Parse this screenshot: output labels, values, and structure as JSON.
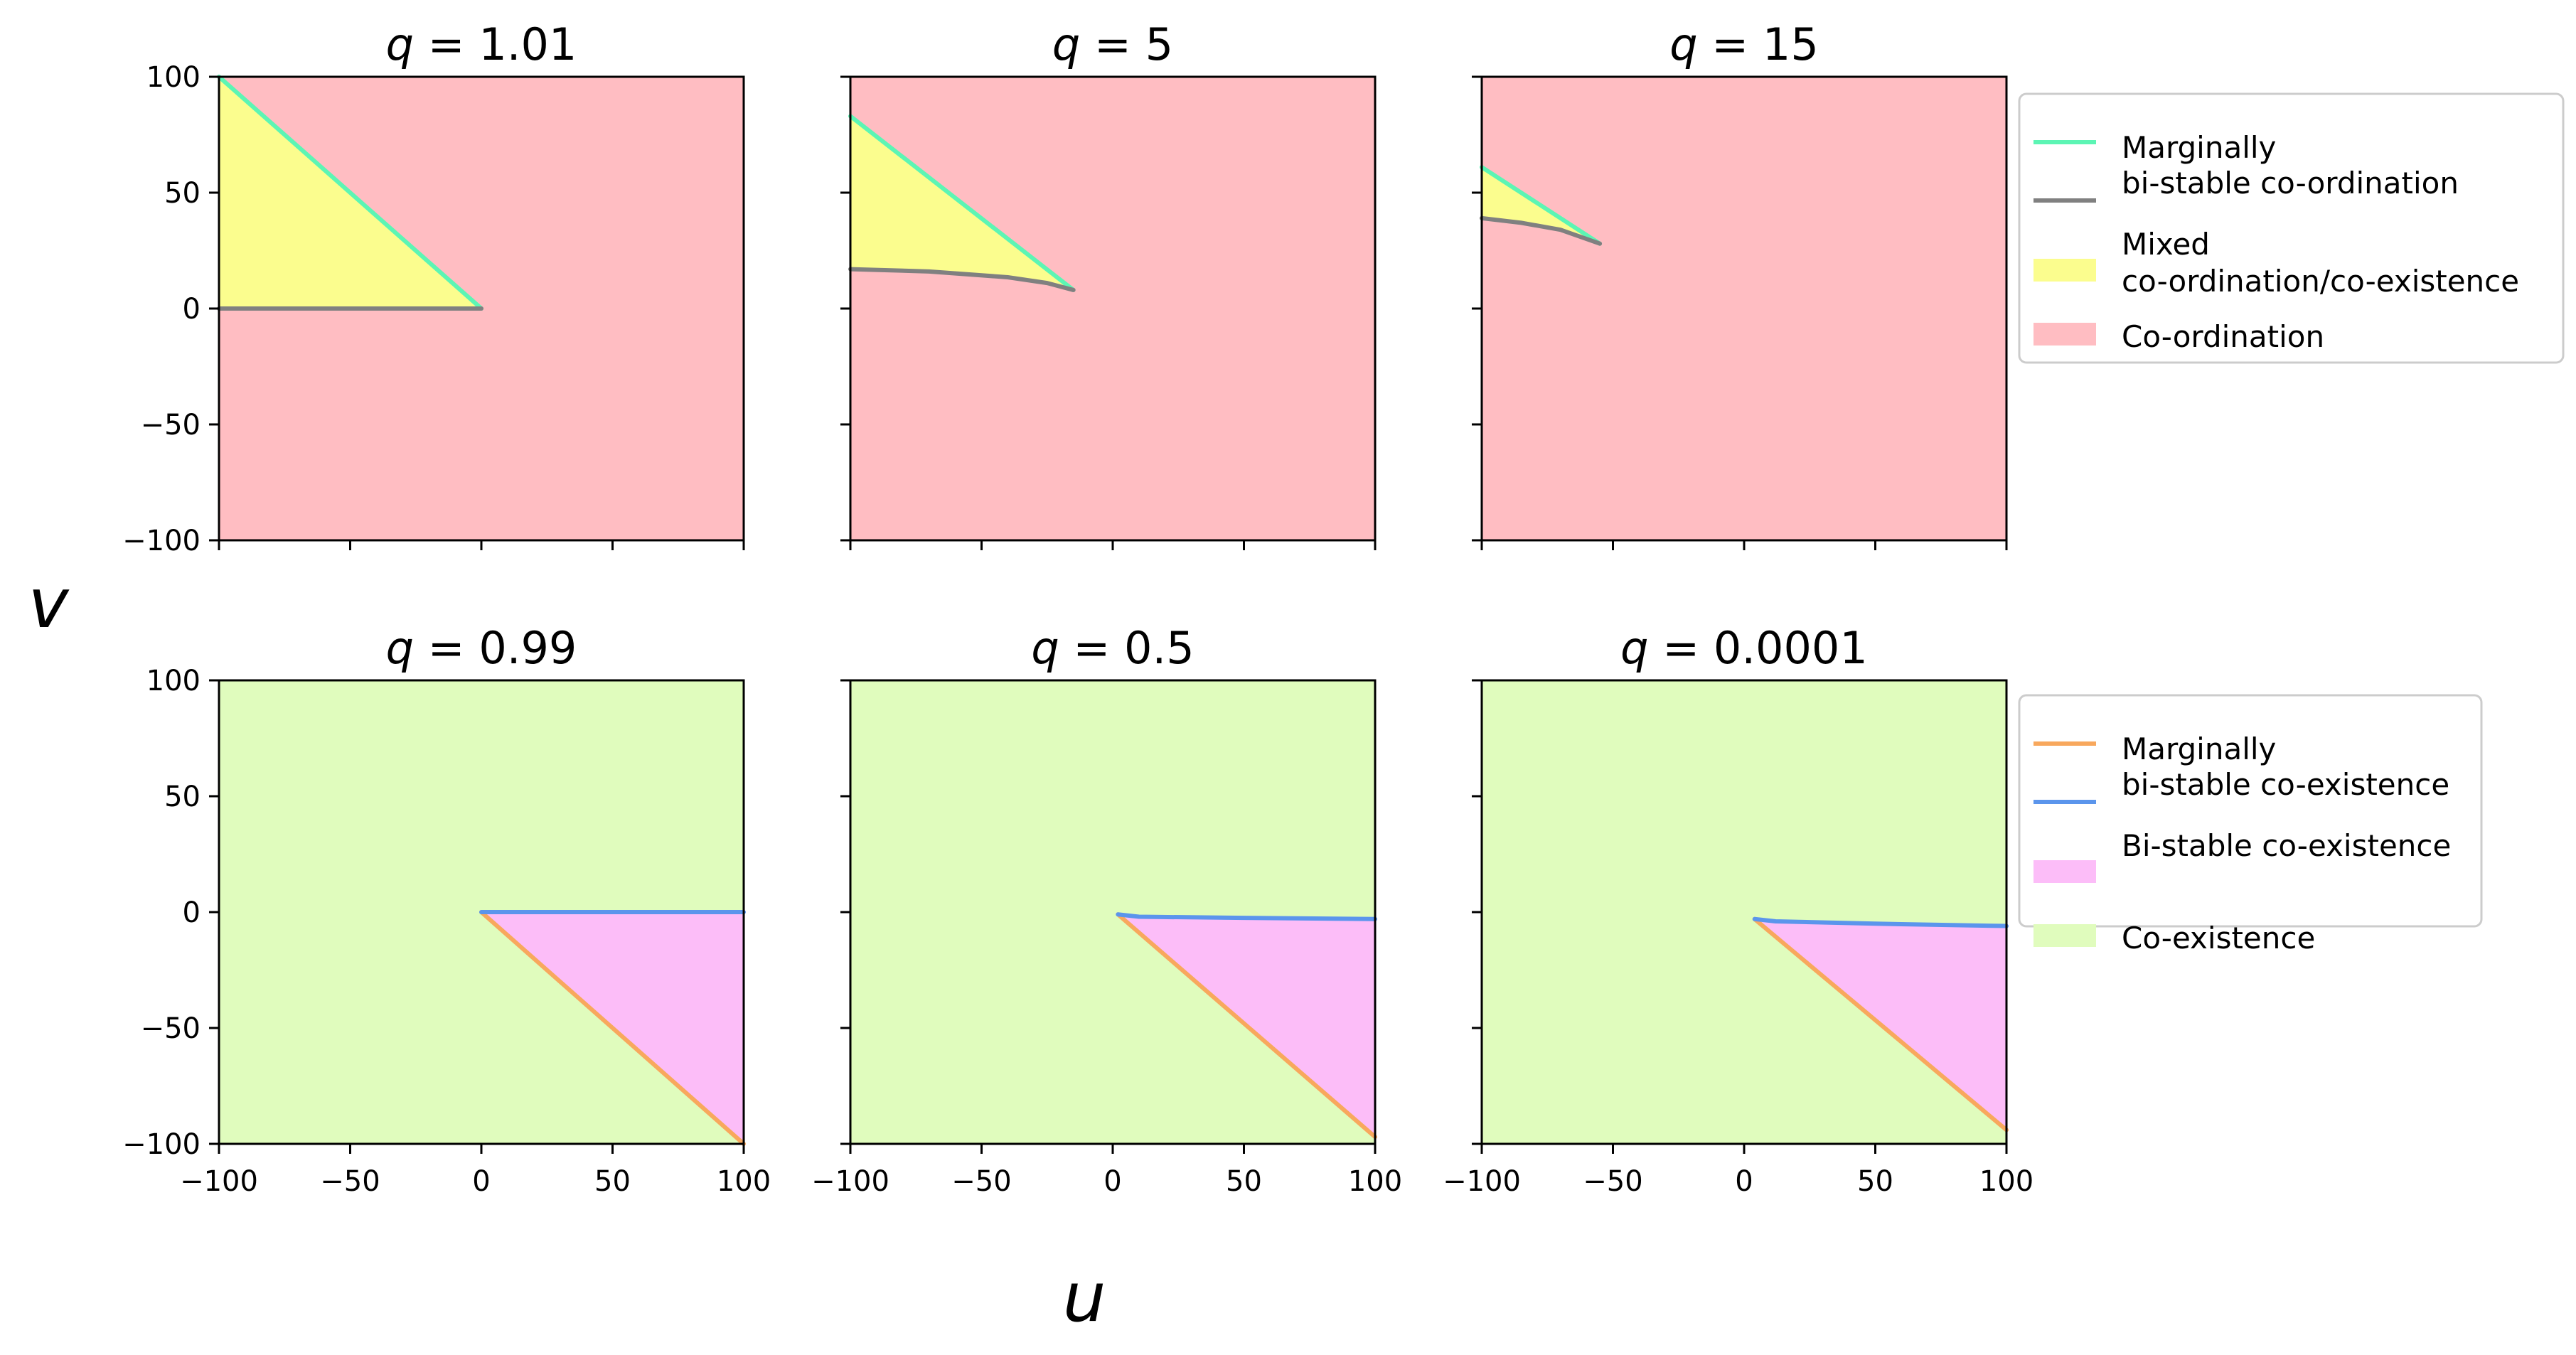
{
  "figure": {
    "xlabel": "u",
    "ylabel": "v"
  },
  "colors": {
    "coordination_fill": "#ffbdc2",
    "mixed_fill": "#fbfd8e",
    "coexistence_fill": "#e0fcbd",
    "bistable_coexistence_fill": "#fcbdf8",
    "marginal_coordination_line": "#5cf5b4",
    "bistable_coordination_line": "#808080",
    "marginal_coexistence_line": "#f8a85d",
    "bistable_coexistence_line": "#5b95ec"
  },
  "legends": {
    "top": [
      {
        "kind": "line",
        "color": "#5cf5b4",
        "label_lines": [
          "Marginally"
        ]
      },
      {
        "kind": "line",
        "color": "#808080",
        "label_lines": [
          "bi-stable co-ordination"
        ]
      },
      {
        "kind": "patch",
        "color": "#fbfd8e",
        "label_lines": [
          "Mixed",
          "co-ordination/co-existence"
        ]
      },
      {
        "kind": "patch",
        "color": "#ffbdc2",
        "label_lines": [
          "Co-ordination"
        ]
      }
    ],
    "bottom": [
      {
        "kind": "line",
        "color": "#f8a85d",
        "label_lines": [
          "Marginally"
        ]
      },
      {
        "kind": "line",
        "color": "#5b95ec",
        "label_lines": [
          "bi-stable co-existence"
        ]
      },
      {
        "kind": "patch",
        "color": "#fcbdf8",
        "label_lines": [
          "Bi-stable co-existence"
        ]
      },
      {
        "kind": "patch",
        "color": "#e0fcbd",
        "label_lines": [
          "Co-existence"
        ]
      }
    ]
  },
  "chart_data": [
    {
      "type": "area",
      "title": "q = 1.01",
      "title_prefix": "q",
      "title_value": "1.01",
      "xlim": [
        -100,
        100
      ],
      "ylim": [
        -100,
        100
      ],
      "xticks": [],
      "yticks": [
        100,
        50,
        0,
        -50,
        -100
      ],
      "background": "#ffbdc2",
      "region": {
        "name": "Mixed co-ordination/co-existence",
        "color": "#fbfd8e",
        "points": [
          [
            -100,
            100
          ],
          [
            0,
            0
          ],
          [
            -100,
            0
          ]
        ]
      },
      "lines": [
        {
          "name": "Marginally",
          "color": "#5cf5b4",
          "points": [
            [
              -100,
              100
            ],
            [
              0,
              0
            ]
          ]
        },
        {
          "name": "bi-stable co-ordination",
          "color": "#808080",
          "points": [
            [
              -100,
              0
            ],
            [
              -50,
              0
            ],
            [
              0,
              0
            ]
          ]
        }
      ]
    },
    {
      "type": "area",
      "title": "q = 5",
      "title_prefix": "q",
      "title_value": "5",
      "xlim": [
        -100,
        100
      ],
      "ylim": [
        -100,
        100
      ],
      "xticks": [],
      "yticks": [],
      "background": "#ffbdc2",
      "region": {
        "name": "Mixed co-ordination/co-existence",
        "color": "#fbfd8e",
        "points": [
          [
            -100,
            83
          ],
          [
            -15,
            8
          ],
          [
            -40,
            13.5
          ],
          [
            -70,
            16
          ],
          [
            -100,
            17
          ]
        ]
      },
      "lines": [
        {
          "name": "Marginally",
          "color": "#5cf5b4",
          "points": [
            [
              -100,
              83
            ],
            [
              -15,
              8
            ]
          ]
        },
        {
          "name": "bi-stable co-ordination",
          "color": "#808080",
          "points": [
            [
              -100,
              17
            ],
            [
              -70,
              16
            ],
            [
              -40,
              13.5
            ],
            [
              -25,
              11
            ],
            [
              -15,
              8
            ]
          ]
        }
      ]
    },
    {
      "type": "area",
      "title": "q = 15",
      "title_prefix": "q",
      "title_value": "15",
      "xlim": [
        -100,
        100
      ],
      "ylim": [
        -100,
        100
      ],
      "xticks": [],
      "yticks": [],
      "background": "#ffbdc2",
      "region": {
        "name": "Mixed co-ordination/co-existence",
        "color": "#fbfd8e",
        "points": [
          [
            -100,
            61
          ],
          [
            -55,
            28
          ],
          [
            -75,
            35
          ],
          [
            -100,
            39
          ]
        ]
      },
      "lines": [
        {
          "name": "Marginally",
          "color": "#5cf5b4",
          "points": [
            [
              -100,
              61
            ],
            [
              -55,
              28
            ]
          ]
        },
        {
          "name": "bi-stable co-ordination",
          "color": "#808080",
          "points": [
            [
              -100,
              39
            ],
            [
              -85,
              37
            ],
            [
              -70,
              34
            ],
            [
              -55,
              28
            ]
          ]
        }
      ]
    },
    {
      "type": "area",
      "title": "q = 0.99",
      "title_prefix": "q",
      "title_value": "0.99",
      "xlim": [
        -100,
        100
      ],
      "ylim": [
        -100,
        100
      ],
      "xticks": [
        -100,
        -50,
        0,
        50,
        100
      ],
      "yticks": [
        100,
        50,
        0,
        -50,
        -100
      ],
      "background": "#e0fcbd",
      "region": {
        "name": "Bi-stable co-existence",
        "color": "#fcbdf8",
        "points": [
          [
            0,
            0
          ],
          [
            100,
            0
          ],
          [
            100,
            -100
          ]
        ]
      },
      "lines": [
        {
          "name": "Marginally",
          "color": "#f8a85d",
          "points": [
            [
              0,
              0
            ],
            [
              100,
              -100
            ]
          ]
        },
        {
          "name": "bi-stable co-existence",
          "color": "#5b95ec",
          "points": [
            [
              0,
              0
            ],
            [
              50,
              0
            ],
            [
              100,
              0
            ]
          ]
        }
      ]
    },
    {
      "type": "area",
      "title": "q = 0.5",
      "title_prefix": "q",
      "title_value": "0.5",
      "xlim": [
        -100,
        100
      ],
      "ylim": [
        -100,
        100
      ],
      "xticks": [
        -100,
        -50,
        0,
        50,
        100
      ],
      "yticks": [],
      "background": "#e0fcbd",
      "region": {
        "name": "Bi-stable co-existence",
        "color": "#fcbdf8",
        "points": [
          [
            2,
            -1
          ],
          [
            10,
            -2
          ],
          [
            50,
            -2.5
          ],
          [
            100,
            -3
          ],
          [
            100,
            -97
          ]
        ]
      },
      "lines": [
        {
          "name": "Marginally",
          "color": "#f8a85d",
          "points": [
            [
              2,
              -1
            ],
            [
              100,
              -97
            ]
          ]
        },
        {
          "name": "bi-stable co-existence",
          "color": "#5b95ec",
          "points": [
            [
              2,
              -1
            ],
            [
              10,
              -2
            ],
            [
              50,
              -2.5
            ],
            [
              100,
              -3
            ]
          ]
        }
      ]
    },
    {
      "type": "area",
      "title": "q = 0.0001",
      "title_prefix": "q",
      "title_value": "0.0001",
      "xlim": [
        -100,
        100
      ],
      "ylim": [
        -100,
        100
      ],
      "xticks": [
        -100,
        -50,
        0,
        50,
        100
      ],
      "yticks": [],
      "background": "#e0fcbd",
      "region": {
        "name": "Bi-stable co-existence",
        "color": "#fcbdf8",
        "points": [
          [
            4,
            -3
          ],
          [
            12,
            -4
          ],
          [
            50,
            -5
          ],
          [
            100,
            -6
          ],
          [
            100,
            -94
          ]
        ]
      },
      "lines": [
        {
          "name": "Marginally",
          "color": "#f8a85d",
          "points": [
            [
              4,
              -3
            ],
            [
              100,
              -94
            ]
          ]
        },
        {
          "name": "bi-stable co-existence",
          "color": "#5b95ec",
          "points": [
            [
              4,
              -3
            ],
            [
              12,
              -4
            ],
            [
              50,
              -5
            ],
            [
              100,
              -6
            ]
          ]
        }
      ]
    }
  ]
}
